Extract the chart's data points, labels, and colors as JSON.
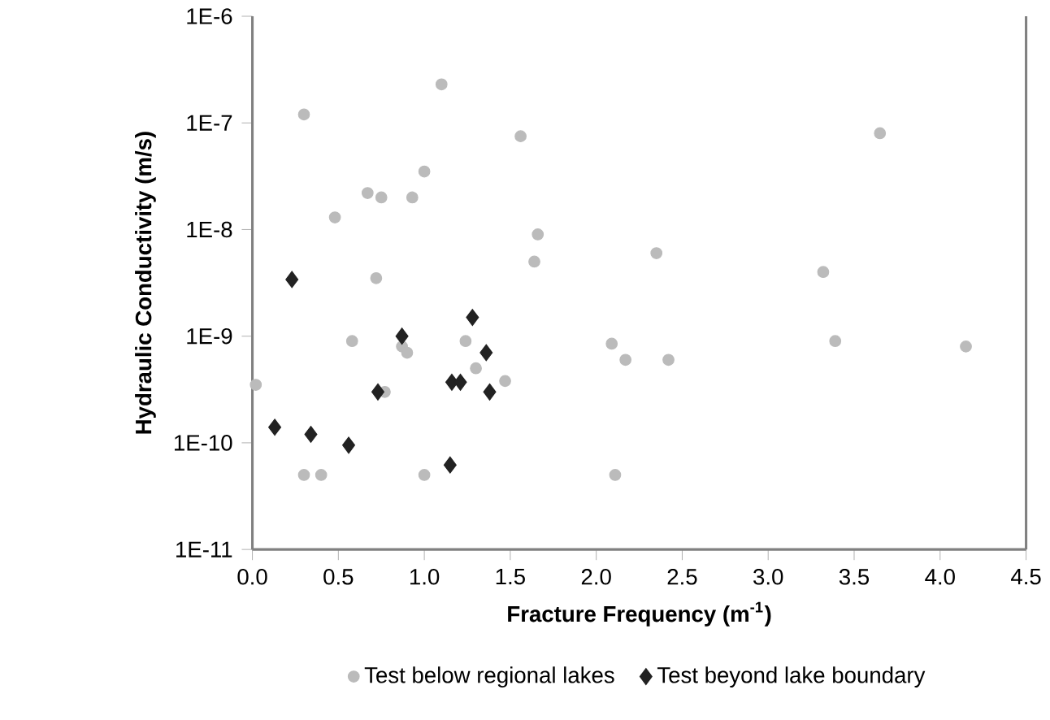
{
  "chart_data": {
    "type": "scatter",
    "xlabel": "Fracture Frequency (m$^{-1}$)",
    "ylabel": "Hydraulic Conductivity (m/s)",
    "log": "y",
    "grid": false,
    "legend": "bottom",
    "xlim": [
      0,
      4.5
    ],
    "xticks": [
      {
        "value": 0,
        "label": "0.0"
      },
      {
        "value": 0.5,
        "label": "0.5"
      },
      {
        "value": 1,
        "label": "1.0"
      },
      {
        "value": 1.5,
        "label": "1.5"
      },
      {
        "value": 2,
        "label": "2.0"
      },
      {
        "value": 2.5,
        "label": "2.5"
      },
      {
        "value": 3,
        "label": "3.0"
      },
      {
        "value": 3.5,
        "label": "3.5"
      },
      {
        "value": 4,
        "label": "4.0"
      },
      {
        "value": 4.5,
        "label": "4.5"
      }
    ],
    "ylim": [
      1e-11,
      1e-06
    ],
    "yticks": [
      {
        "value": 1e-11,
        "label": "1E-11"
      },
      {
        "value": 1e-10,
        "label": "1E-10"
      },
      {
        "value": 1e-09,
        "label": "1E-9"
      },
      {
        "value": 1e-08,
        "label": "1E-8"
      },
      {
        "value": 1e-07,
        "label": "1E-7"
      },
      {
        "value": 1e-06,
        "label": "1E-6"
      }
    ],
    "series": [
      {
        "name": "Test below regional lakes",
        "color": "#bbbbbb",
        "marker": "circle",
        "x": [
          0.02,
          0.3,
          0.3,
          0.4,
          0.48,
          0.58,
          0.67,
          0.72,
          0.75,
          0.77,
          0.87,
          0.9,
          0.93,
          1.0,
          1.0,
          1.1,
          1.24,
          1.3,
          1.47,
          1.56,
          1.64,
          1.66,
          2.09,
          2.11,
          2.17,
          2.35,
          2.42,
          3.32,
          3.39,
          3.65,
          4.15
        ],
        "values": [
          3.5e-10,
          1.2e-07,
          5e-11,
          5e-11,
          1.3e-08,
          9e-10,
          2.2e-08,
          3.5e-09,
          2e-08,
          3e-10,
          8e-10,
          7e-10,
          2e-08,
          3.5e-08,
          5e-11,
          2.3e-07,
          9e-10,
          5e-10,
          3.8e-10,
          7.5e-08,
          5e-09,
          9e-09,
          8.5e-10,
          5e-11,
          6e-10,
          6e-09,
          6e-10,
          4e-09,
          9e-10,
          8e-08,
          8e-10
        ]
      },
      {
        "name": "Test beyond lake boundary",
        "color": "#222222",
        "marker": "diamond",
        "x": [
          0.13,
          0.23,
          0.34,
          0.56,
          0.73,
          0.87,
          1.15,
          1.16,
          1.21,
          1.28,
          1.36,
          1.38
        ],
        "values": [
          1.4e-10,
          3.4e-09,
          1.2e-10,
          9.5e-11,
          3e-10,
          1e-09,
          6.2e-11,
          3.7e-10,
          3.7e-10,
          1.5e-09,
          7e-10,
          3e-10
        ]
      }
    ]
  }
}
